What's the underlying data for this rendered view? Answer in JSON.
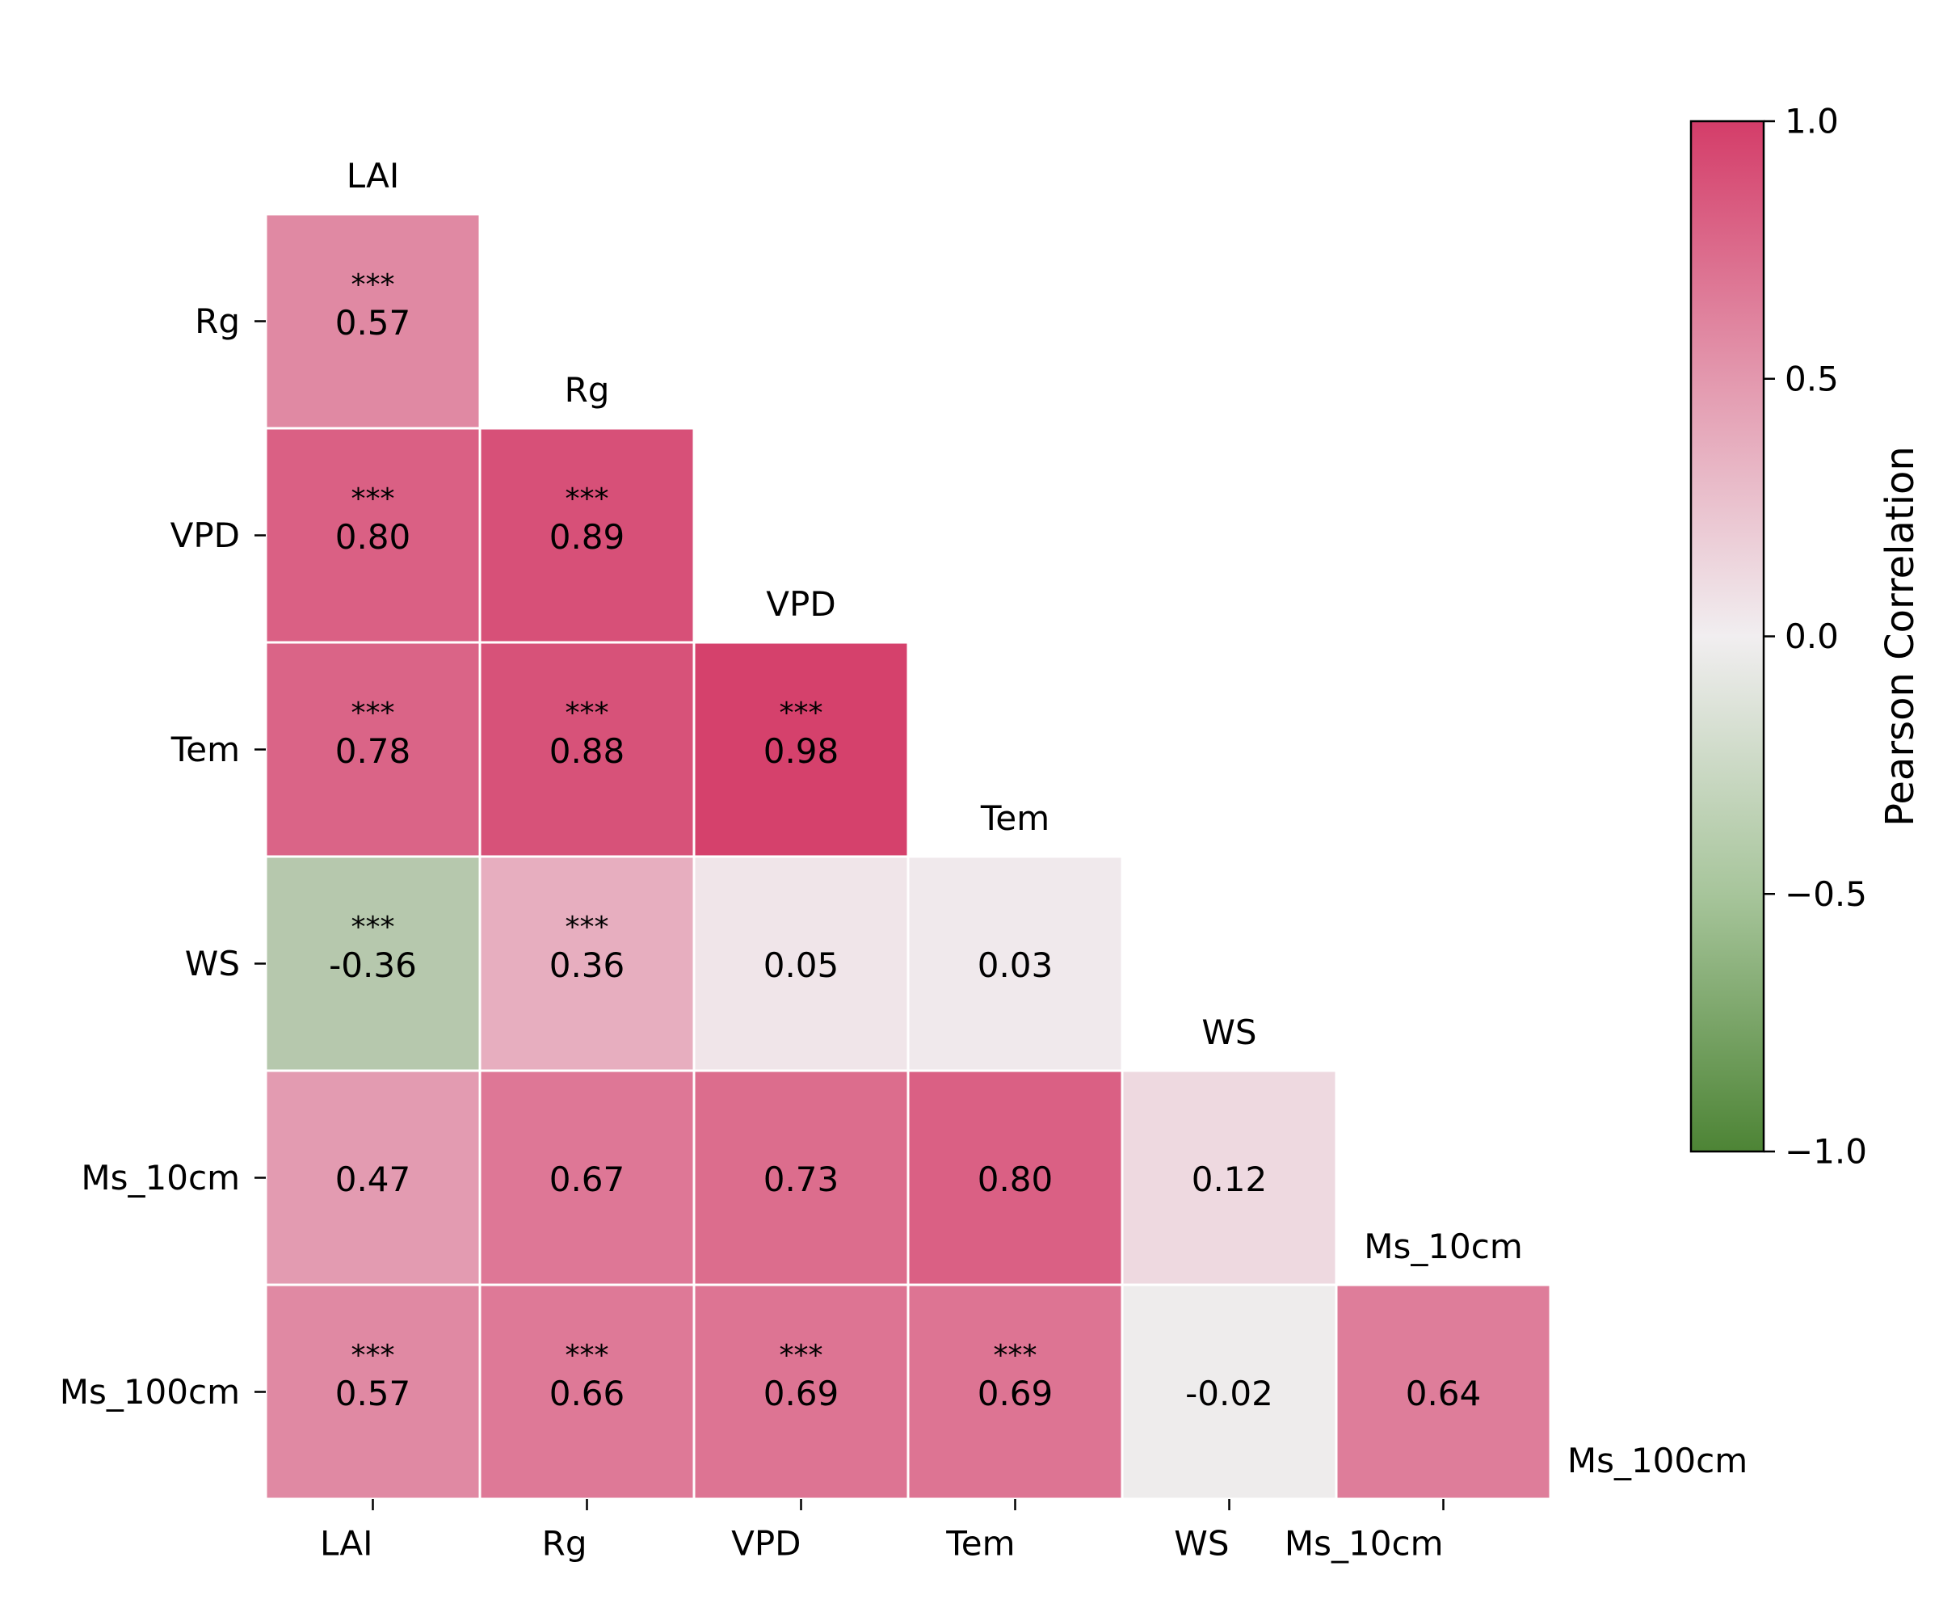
{
  "chart_data": {
    "type": "heatmap",
    "variables": [
      "LAI",
      "Rg",
      "VPD",
      "Tem",
      "WS",
      "Ms_10cm",
      "Ms_100cm"
    ],
    "rows": [
      "Rg",
      "VPD",
      "Tem",
      "WS",
      "Ms_10cm",
      "Ms_100cm"
    ],
    "columns": [
      "LAI",
      "Rg",
      "VPD",
      "Tem",
      "WS",
      "Ms_10cm"
    ],
    "cells": [
      {
        "row": "Rg",
        "col": "LAI",
        "value": 0.57,
        "sig": "***"
      },
      {
        "row": "VPD",
        "col": "LAI",
        "value": 0.8,
        "sig": "***"
      },
      {
        "row": "VPD",
        "col": "Rg",
        "value": 0.89,
        "sig": "***"
      },
      {
        "row": "Tem",
        "col": "LAI",
        "value": 0.78,
        "sig": "***"
      },
      {
        "row": "Tem",
        "col": "Rg",
        "value": 0.88,
        "sig": "***"
      },
      {
        "row": "Tem",
        "col": "VPD",
        "value": 0.98,
        "sig": "***"
      },
      {
        "row": "WS",
        "col": "LAI",
        "value": -0.36,
        "sig": "***"
      },
      {
        "row": "WS",
        "col": "Rg",
        "value": 0.36,
        "sig": "***"
      },
      {
        "row": "WS",
        "col": "VPD",
        "value": 0.05,
        "sig": ""
      },
      {
        "row": "WS",
        "col": "Tem",
        "value": 0.03,
        "sig": ""
      },
      {
        "row": "Ms_10cm",
        "col": "LAI",
        "value": 0.47,
        "sig": ""
      },
      {
        "row": "Ms_10cm",
        "col": "Rg",
        "value": 0.67,
        "sig": ""
      },
      {
        "row": "Ms_10cm",
        "col": "VPD",
        "value": 0.73,
        "sig": ""
      },
      {
        "row": "Ms_10cm",
        "col": "Tem",
        "value": 0.8,
        "sig": ""
      },
      {
        "row": "Ms_10cm",
        "col": "WS",
        "value": 0.12,
        "sig": ""
      },
      {
        "row": "Ms_100cm",
        "col": "LAI",
        "value": 0.57,
        "sig": "***"
      },
      {
        "row": "Ms_100cm",
        "col": "Rg",
        "value": 0.66,
        "sig": "***"
      },
      {
        "row": "Ms_100cm",
        "col": "VPD",
        "value": 0.69,
        "sig": "***"
      },
      {
        "row": "Ms_100cm",
        "col": "Tem",
        "value": 0.69,
        "sig": "***"
      },
      {
        "row": "Ms_100cm",
        "col": "WS",
        "value": -0.02,
        "sig": ""
      },
      {
        "row": "Ms_100cm",
        "col": "Ms_10cm",
        "value": 0.64,
        "sig": ""
      }
    ],
    "colorbar": {
      "label": "Pearson Correlation",
      "range": [
        -1.0,
        1.0
      ],
      "ticks": [
        1.0,
        0.5,
        0.0,
        -0.5,
        -1.0
      ],
      "tick_labels": [
        "1.0",
        "0.5",
        "0.0",
        "−0.5",
        "−1.0"
      ],
      "colors": {
        "negative": "#4d8435",
        "neutral": "#f1eef0",
        "positive": "#d43d69"
      }
    },
    "title": "",
    "xlabel": "",
    "ylabel": ""
  }
}
